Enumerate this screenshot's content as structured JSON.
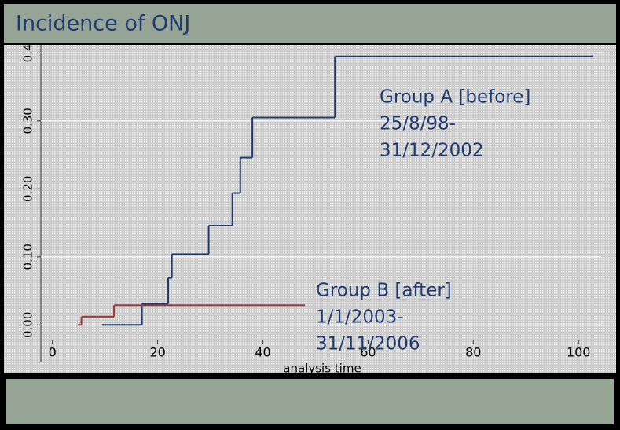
{
  "chart_data": {
    "type": "step",
    "title": "Incidence of ONJ",
    "xlabel": "analysis time",
    "xlim": [
      -2.2,
      104.3
    ],
    "ylim": [
      -0.054,
      0.412
    ],
    "xticks": [
      0,
      20,
      40,
      60,
      80,
      100
    ],
    "yticks": [
      {
        "value": 0,
        "label": "0.00"
      },
      {
        "value": 0.1,
        "label": "0.10"
      },
      {
        "value": 0.2,
        "label": "0.20"
      },
      {
        "value": 0.3,
        "label": "0.30"
      },
      0.4
    ],
    "grid": true,
    "series": [
      {
        "name": "Group A [before]",
        "period": [
          "25/8/98-",
          "31/12/2002"
        ],
        "color": "#1f3a6e",
        "x": [
          9.4,
          17.0,
          22.0,
          22.7,
          29.7,
          34.2,
          35.7,
          38.0,
          53.7,
          102.8
        ],
        "values": [
          0,
          0.031,
          0.069,
          0.104,
          0.146,
          0.194,
          0.246,
          0.305,
          0.395,
          0.395
        ]
      },
      {
        "name": "Group B [after]",
        "period": [
          "1/1/2003-",
          "31/11/2006"
        ],
        "color": "#a03838",
        "x": [
          4.8,
          5.5,
          11.7,
          48.0
        ],
        "values": [
          0,
          0.012,
          0.029,
          0.029
        ]
      }
    ]
  }
}
